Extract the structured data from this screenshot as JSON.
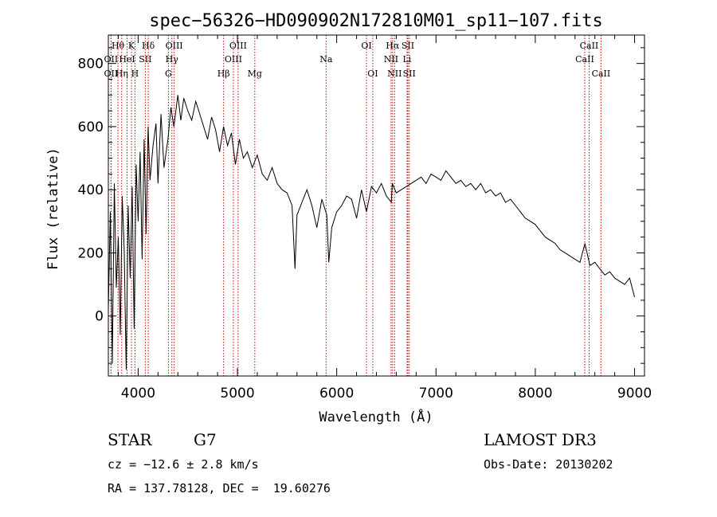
{
  "chart_data": {
    "type": "line",
    "title": "spec−56326−HD090902N172810M01_sp11−107.fits",
    "xlabel": "Wavelength (Å)",
    "ylabel": "Flux (relative)",
    "xlim": [
      3700,
      9100
    ],
    "ylim": [
      -190,
      890
    ],
    "xticks": [
      4000,
      5000,
      6000,
      7000,
      8000,
      9000
    ],
    "yticks": [
      0,
      200,
      400,
      600,
      800
    ],
    "line_color": "#000000",
    "marker_color": "#cc0000",
    "series": [
      {
        "x": [
          3700,
          3720,
          3740,
          3760,
          3780,
          3800,
          3820,
          3840,
          3860,
          3880,
          3900,
          3920,
          3940,
          3960,
          3980,
          4000,
          4020,
          4040,
          4060,
          4080,
          4100,
          4120,
          4150,
          4180,
          4200,
          4230,
          4260,
          4300,
          4330,
          4360,
          4400,
          4430,
          4460,
          4500,
          4540,
          4580,
          4620,
          4660,
          4700,
          4740,
          4780,
          4820,
          4860,
          4900,
          4940,
          4980,
          5020,
          5060,
          5100,
          5150,
          5200,
          5250,
          5300,
          5350,
          5400,
          5450,
          5500,
          5550,
          5580,
          5600,
          5650,
          5700,
          5750,
          5800,
          5850,
          5900,
          5920,
          5950,
          6000,
          6050,
          6100,
          6150,
          6200,
          6250,
          6300,
          6350,
          6400,
          6450,
          6500,
          6550,
          6560,
          6600,
          6650,
          6700,
          6750,
          6800,
          6850,
          6900,
          6950,
          7000,
          7050,
          7100,
          7150,
          7200,
          7250,
          7300,
          7350,
          7400,
          7450,
          7500,
          7550,
          7600,
          7650,
          7700,
          7750,
          7800,
          7850,
          7900,
          7950,
          8000,
          8050,
          8100,
          8150,
          8200,
          8250,
          8300,
          8350,
          8400,
          8450,
          8500,
          8550,
          8600,
          8650,
          8700,
          8750,
          8800,
          8850,
          8900,
          8950,
          9000
        ],
        "y": [
          20,
          330,
          -150,
          420,
          90,
          250,
          -60,
          380,
          210,
          -170,
          350,
          120,
          410,
          -40,
          480,
          300,
          520,
          180,
          560,
          260,
          600,
          430,
          540,
          610,
          420,
          640,
          470,
          560,
          660,
          600,
          700,
          620,
          690,
          650,
          620,
          680,
          640,
          600,
          560,
          630,
          590,
          520,
          600,
          540,
          580,
          480,
          560,
          500,
          520,
          470,
          510,
          450,
          430,
          470,
          420,
          400,
          390,
          350,
          150,
          320,
          360,
          400,
          350,
          280,
          370,
          320,
          170,
          280,
          330,
          350,
          380,
          370,
          310,
          400,
          330,
          410,
          390,
          420,
          380,
          360,
          420,
          390,
          400,
          410,
          420,
          430,
          440,
          420,
          450,
          440,
          430,
          460,
          440,
          420,
          430,
          410,
          420,
          400,
          420,
          390,
          400,
          380,
          390,
          360,
          370,
          350,
          330,
          310,
          300,
          290,
          270,
          250,
          240,
          230,
          210,
          200,
          190,
          180,
          170,
          230,
          160,
          170,
          150,
          130,
          140,
          120,
          110,
          100,
          120,
          60
        ]
      }
    ],
    "spectral_lines": [
      {
        "name": "Hθ",
        "x": 3797,
        "row": 1
      },
      {
        "name": "OII",
        "x": 3727,
        "row": 2
      },
      {
        "name": "OII",
        "x": 3727,
        "row": 3
      },
      {
        "name": "Hη",
        "x": 3835,
        "row": 3
      },
      {
        "name": "K",
        "x": 3933,
        "row": 1
      },
      {
        "name": "HeI",
        "x": 3889,
        "row": 2
      },
      {
        "name": "H",
        "x": 3968,
        "row": 3
      },
      {
        "name": "SII",
        "x": 4072,
        "row": 2
      },
      {
        "name": "Hδ",
        "x": 4102,
        "row": 1
      },
      {
        "name": "OIII",
        "x": 4363,
        "row": 1
      },
      {
        "name": "Hγ",
        "x": 4340,
        "row": 2
      },
      {
        "name": "G",
        "x": 4305,
        "row": 3
      },
      {
        "name": "Hβ",
        "x": 4861,
        "row": 3
      },
      {
        "name": "OIII",
        "x": 5007,
        "row": 1
      },
      {
        "name": "OIII",
        "x": 4959,
        "row": 2
      },
      {
        "name": "Mg",
        "x": 5175,
        "row": 3
      },
      {
        "name": "Na",
        "x": 5893,
        "row": 2
      },
      {
        "name": "OI",
        "x": 6300,
        "row": 1
      },
      {
        "name": "OI",
        "x": 6363,
        "row": 3
      },
      {
        "name": "Hα",
        "x": 6563,
        "row": 1
      },
      {
        "name": "NII",
        "x": 6548,
        "row": 2
      },
      {
        "name": "NII",
        "x": 6583,
        "row": 3
      },
      {
        "name": "SII",
        "x": 6717,
        "row": 1
      },
      {
        "name": "Li",
        "x": 6708,
        "row": 2
      },
      {
        "name": "SII",
        "x": 6731,
        "row": 3
      },
      {
        "name": "CaII",
        "x": 8542,
        "row": 1
      },
      {
        "name": "CaII",
        "x": 8498,
        "row": 2
      },
      {
        "name": "CaII",
        "x": 8662,
        "row": 3
      }
    ]
  },
  "info": {
    "class": "STAR",
    "subclass": "G7",
    "survey": "LAMOST DR3",
    "cz": "cz = −12.6 ± 2.8 km/s",
    "obs_date": "Obs-Date: 20130202",
    "radec": "RA = 137.78128, DEC =  19.60276"
  }
}
